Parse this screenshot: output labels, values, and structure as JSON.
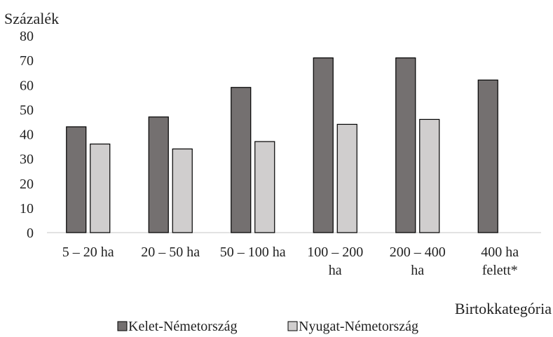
{
  "chart_data": {
    "type": "bar",
    "title": "",
    "ylabel": "Százalék",
    "xlabel": "Birtokkategória",
    "ylim": [
      0,
      80
    ],
    "yticks": [
      "0",
      "10",
      "20",
      "30",
      "40",
      "50",
      "60",
      "70",
      "80"
    ],
    "categories": [
      [
        "5 – 20 ha"
      ],
      [
        "20 – 50 ha"
      ],
      [
        "50 – 100 ha"
      ],
      [
        "100 – 200",
        "ha"
      ],
      [
        "200 – 400",
        "ha"
      ],
      [
        "400 ha",
        "felett*"
      ]
    ],
    "series": [
      {
        "name": "Kelet-Németország",
        "color": "#747070",
        "values": [
          43,
          47,
          59,
          71,
          71,
          62
        ]
      },
      {
        "name": "Nyugat-Németország",
        "color": "#d0cece",
        "values": [
          36,
          34,
          37,
          44,
          46,
          null
        ]
      }
    ],
    "legend_position": "bottom",
    "grid": false
  }
}
